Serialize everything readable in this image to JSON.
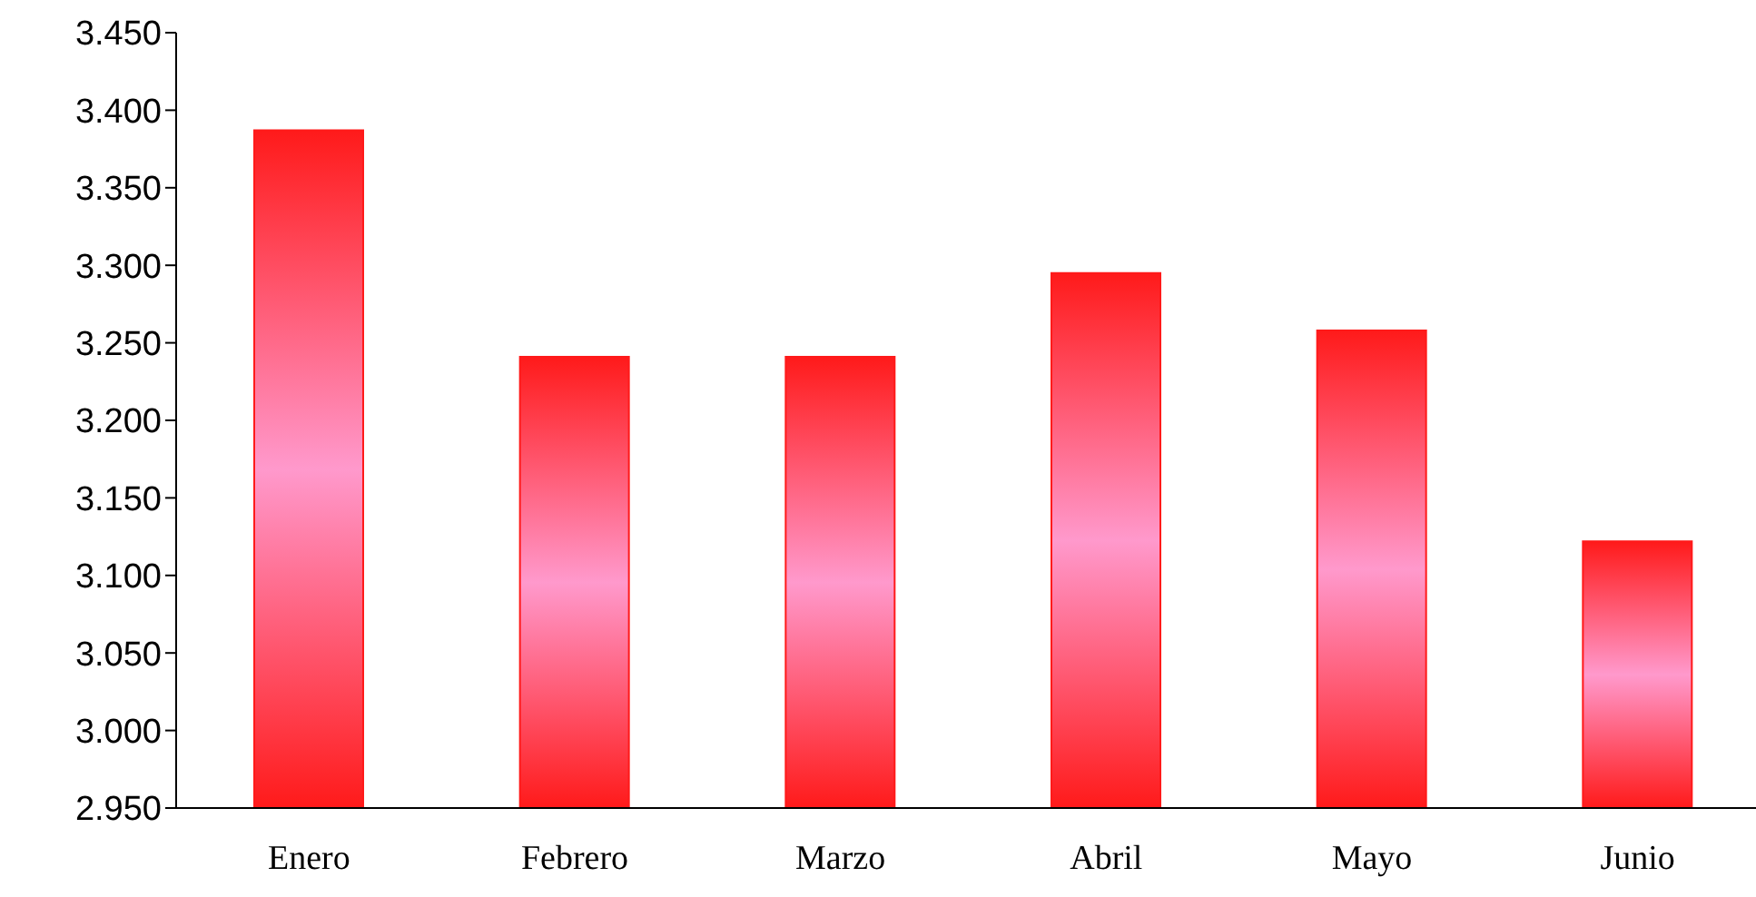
{
  "chart_data": {
    "type": "bar",
    "categories": [
      "Enero",
      "Febrero",
      "Marzo",
      "Abril",
      "Mayo",
      "Junio"
    ],
    "values": [
      3387,
      3241,
      3241,
      3295,
      3258,
      3122
    ],
    "color": "#ff1a1a",
    "ylim": [
      2950,
      3450
    ],
    "yticks": [
      {
        "value": 2950,
        "label": "2.950"
      },
      {
        "value": 3000,
        "label": "3.000"
      },
      {
        "value": 3050,
        "label": "3.050"
      },
      {
        "value": 3100,
        "label": "3.100"
      },
      {
        "value": 3150,
        "label": "3.150"
      },
      {
        "value": 3200,
        "label": "3.200"
      },
      {
        "value": 3250,
        "label": "3.250"
      },
      {
        "value": 3300,
        "label": "3.300"
      },
      {
        "value": 3350,
        "label": "3.350"
      },
      {
        "value": 3400,
        "label": "3.400"
      },
      {
        "value": 3450,
        "label": "3.450"
      }
    ],
    "grid": false,
    "legend": false
  }
}
